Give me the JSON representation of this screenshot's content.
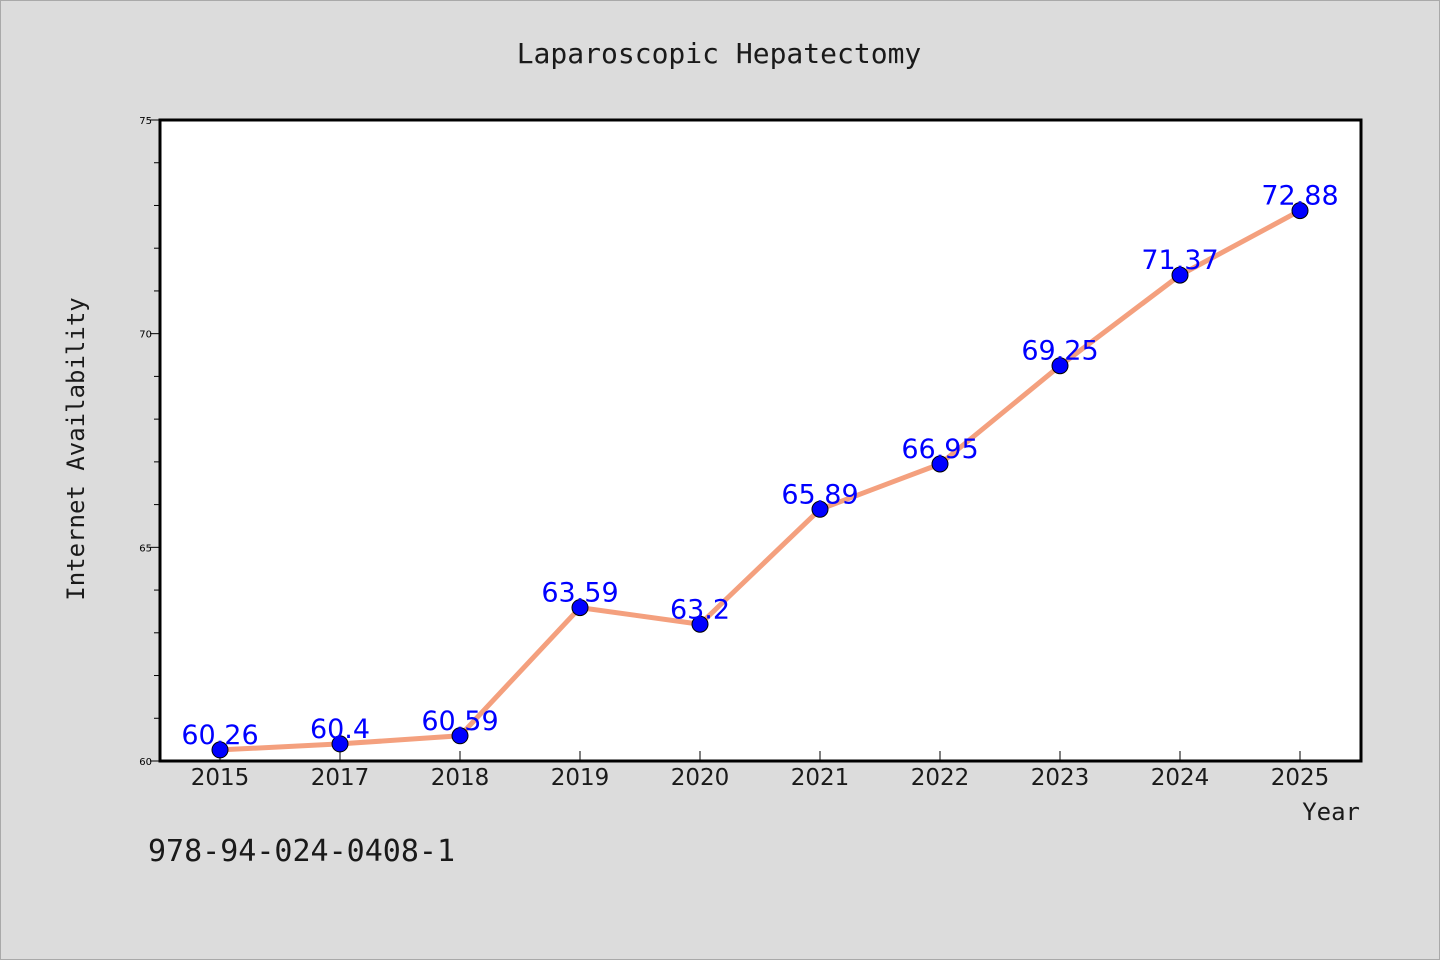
{
  "chart_data": {
    "type": "line",
    "title": "Laparoscopic Hepatectomy",
    "xlabel": "Year",
    "ylabel": "Internet Availability",
    "categories": [
      "2015",
      "2017",
      "2018",
      "2019",
      "2020",
      "2021",
      "2022",
      "2023",
      "2024",
      "2025"
    ],
    "series": [
      {
        "values": [
          60.26,
          60.4,
          60.59,
          63.59,
          63.2,
          65.89,
          66.95,
          69.25,
          71.37,
          72.88
        ],
        "labels": [
          "60.26",
          "60.4",
          "60.59",
          "63.59",
          "63.2",
          "65.89",
          "66.95",
          "69.25",
          "71.37",
          "72.88"
        ],
        "line_color": "#f4a07e",
        "marker_color": "#0000ff",
        "label_color": "#0000ff"
      }
    ],
    "ylim": [
      60,
      75
    ],
    "y_major_ticks": [
      60,
      65,
      70,
      75
    ],
    "y_minor_step": 1,
    "grid": false,
    "legend": "none"
  },
  "footer": {
    "code": "978-94-024-0408-1"
  }
}
